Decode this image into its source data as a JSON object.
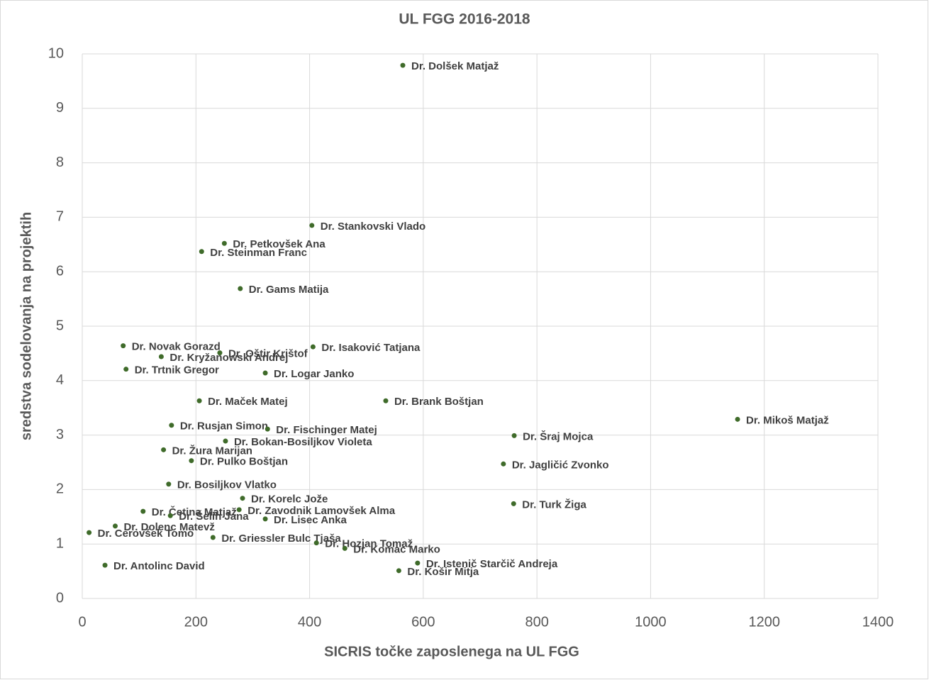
{
  "chart_data": {
    "type": "scatter",
    "title": "UL FGG 2016-2018",
    "x_label": "SICRIS točke zaposlenega na UL FGG",
    "y_label": "sredstva sodelovanja na projektih",
    "xlim": [
      0,
      1400
    ],
    "xticks": [
      0,
      200,
      400,
      600,
      800,
      1000,
      1200,
      1400
    ],
    "ylim": [
      0,
      10
    ],
    "yticks": [
      0,
      1,
      2,
      3,
      4,
      5,
      6,
      7,
      8,
      9,
      10
    ],
    "grid": true,
    "color": "#3f6b2a",
    "labels": [
      "Dr. Dolšek Matjaž",
      "Dr. Stankovski Vlado",
      "Dr. Petkovšek Ana",
      "Dr. Steinman Franc",
      "Dr. Gams Matija",
      "Dr. Novak Gorazd",
      "Dr. Isaković Tatjana",
      "Dr. Oštir Krištof",
      "Dr. Kryžanowski Andrej",
      "Dr. Logar Janko",
      "Dr. Trtnik Gregor",
      "Dr. Maček Matej",
      "Dr. Brank Boštjan",
      "Dr. Mikoš Matjaž",
      "Dr. Rusjan Simon",
      "Dr. Fischinger Matej",
      "Dr. Šraj Mojca",
      "Dr. Bokan-Bosiljkov Violeta",
      "Dr. Žura Marijan",
      "Dr. Pulko Boštjan",
      "Dr. Jagličić Zvonko",
      "Dr. Bosiljkov Vlatko",
      "Dr. Korelc Jože",
      "Dr. Turk Žiga",
      "Dr. Zavodnik Lamovšek Alma",
      "Dr. Četina Matjaž",
      "Dr. Lisec Anka",
      "Dr. Šelih Jana",
      "Dr. Dolenc Matevž",
      "Dr. Cerovšek Tomo",
      "Dr. Griessler Bulc Tjaša",
      "Dr. Hozjan Tomaž",
      "Dr. Komac Marko",
      "Dr. Istenič Starčič Andreja",
      "Dr. Antolinc David",
      "Dr. Košir Mitja"
    ],
    "x": [
      564,
      404,
      250,
      210,
      278,
      72,
      406,
      242,
      139,
      322,
      77,
      206,
      534,
      1153,
      157,
      326,
      760,
      252,
      143,
      192,
      741,
      152,
      282,
      759,
      276,
      107,
      322,
      155,
      58,
      12,
      230,
      412,
      462,
      590,
      40,
      557
    ],
    "values": [
      9.79,
      6.85,
      6.52,
      6.37,
      5.69,
      4.64,
      4.62,
      4.51,
      4.44,
      4.14,
      4.21,
      3.63,
      3.63,
      3.29,
      3.18,
      3.11,
      2.99,
      2.89,
      2.73,
      2.53,
      2.47,
      2.1,
      1.84,
      1.74,
      1.63,
      1.6,
      1.46,
      1.52,
      1.33,
      1.21,
      1.12,
      1.02,
      0.92,
      0.65,
      0.61,
      0.51
    ]
  }
}
